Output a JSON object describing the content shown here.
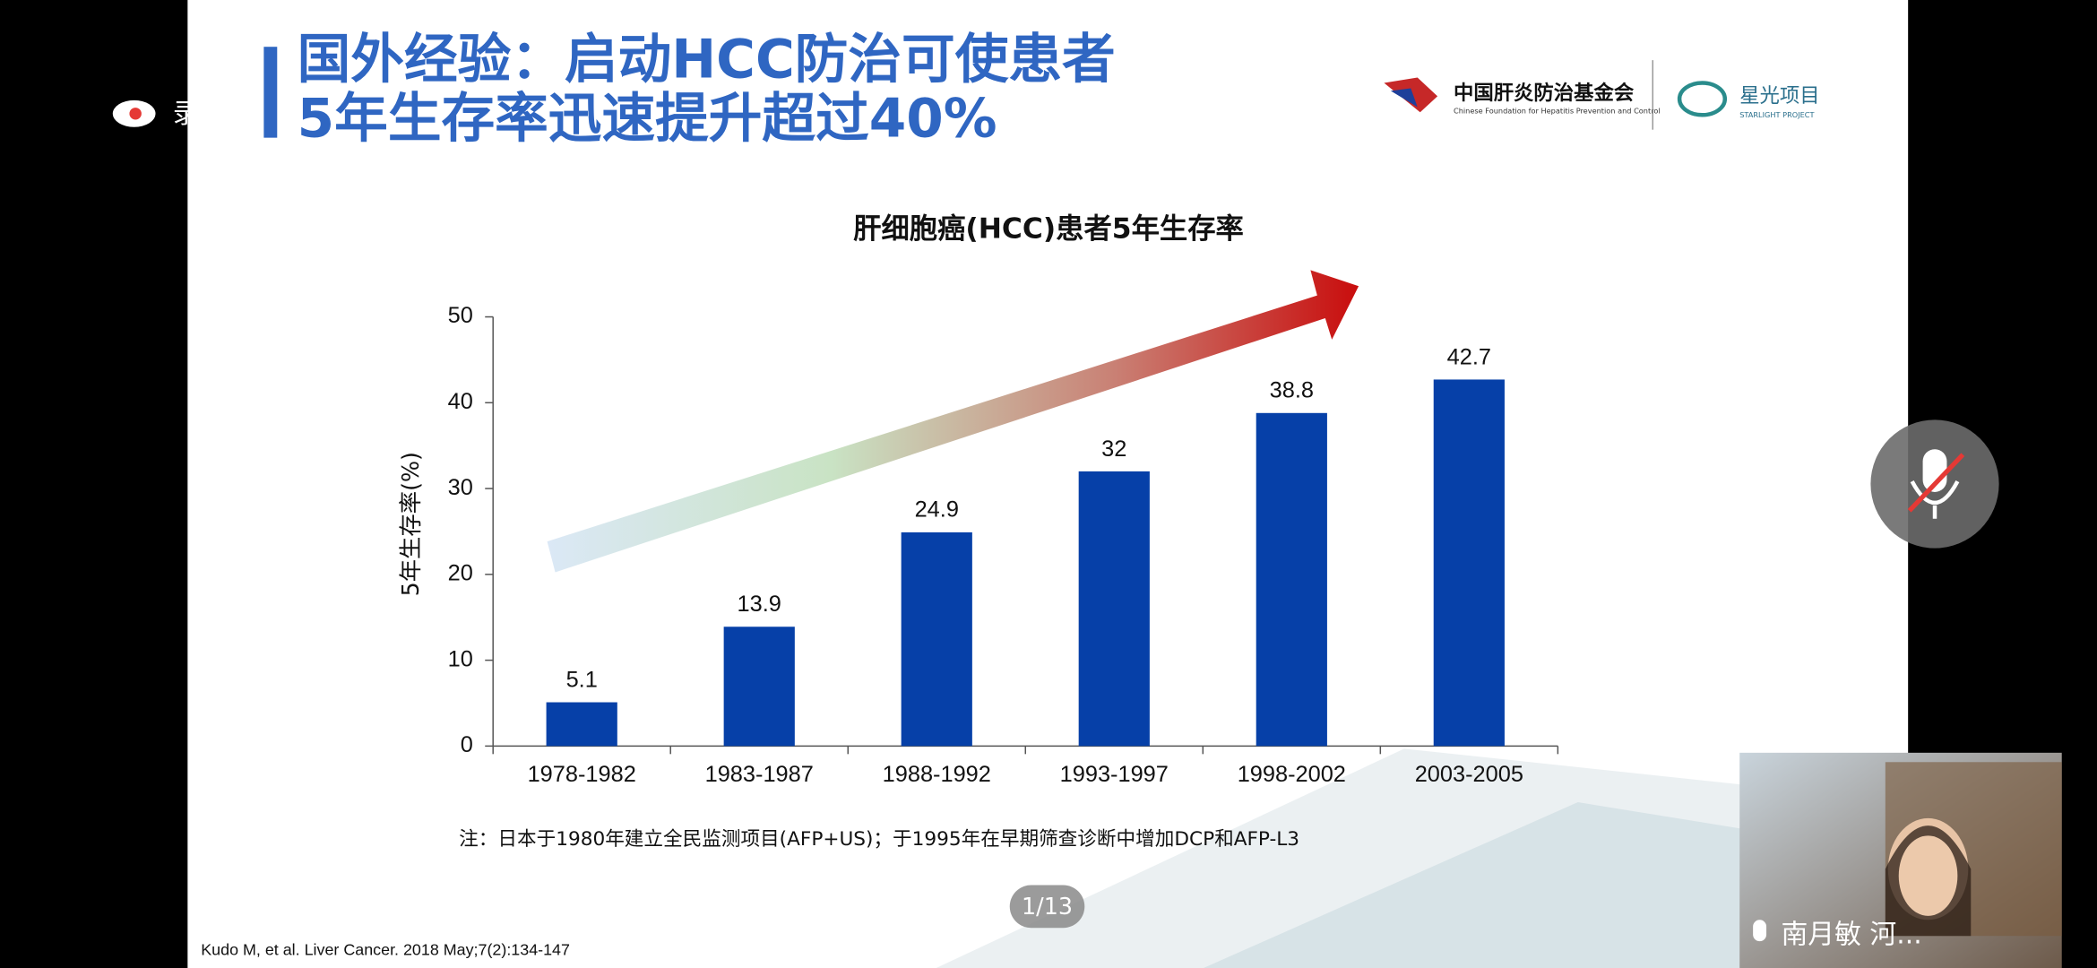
{
  "recording": "录制中",
  "slide": {
    "title_line1": "国外经验：启动HCC防治可使患者",
    "title_line2": "5年生存率迅速提升超过40%",
    "logo1_cn": "中国肝炎防治基金会",
    "logo1_en": "Chinese Foundation for Hepatitis Prevention and Control",
    "logo2_cn": "星光项目",
    "logo2_en": "STARLIGHT PROJECT",
    "note": "注：日本于1980年建立全民监测项目(AFP+US)；于1995年在早期筛查诊断中增加DCP和AFP-L3",
    "citation": "Kudo M, et al. Liver Cancer. 2018 May;7(2):134-147"
  },
  "page_indicator": "1/13",
  "participant": "南月敏 河...",
  "chart_data": {
    "type": "bar",
    "title": "肝细胞癌(HCC)患者5年生存率",
    "y_label": "5年生存率(%)",
    "categories": [
      "1978-1982",
      "1983-1987",
      "1988-1992",
      "1993-1997",
      "1998-2002",
      "2003-2005"
    ],
    "values": [
      5.1,
      13.9,
      24.9,
      32,
      38.8,
      42.7
    ],
    "color": "#0640a8",
    "ylim": [
      0,
      50
    ],
    "yticks": [
      0,
      10,
      20,
      30,
      40,
      50
    ],
    "grid": false
  }
}
